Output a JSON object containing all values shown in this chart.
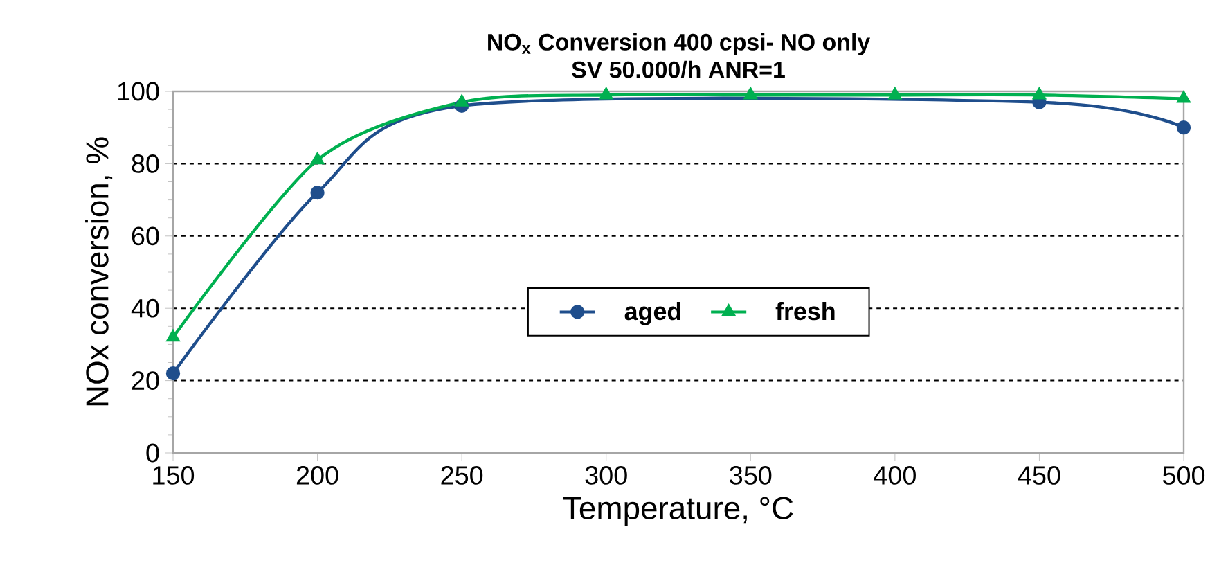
{
  "chart_data": {
    "type": "line",
    "title": "NO$_{x}$ Conversion 400 cpsi- NO only",
    "subtitle": "SV 50.000/h  ANR=1",
    "xlabel": "Temperature, °C",
    "ylabel": "NOx conversion, %",
    "x": [
      150,
      200,
      250,
      300,
      350,
      400,
      450,
      500
    ],
    "series": [
      {
        "name": "aged",
        "color": "#1f4e8c",
        "marker": "circle",
        "values": [
          22,
          72,
          96,
          null,
          null,
          null,
          97,
          90
        ]
      },
      {
        "name": "fresh",
        "color": "#00b050",
        "marker": "triangle",
        "values": [
          32,
          81,
          97,
          99,
          99,
          99,
          99,
          98
        ]
      }
    ],
    "xlim": [
      150,
      500
    ],
    "xticks": [
      150,
      200,
      250,
      300,
      350,
      400,
      450,
      500
    ],
    "ylim": [
      0,
      100
    ],
    "yticks": [
      0,
      20,
      40,
      60,
      80,
      100
    ],
    "grid": "y",
    "legend": "center",
    "line_style": "solid"
  }
}
